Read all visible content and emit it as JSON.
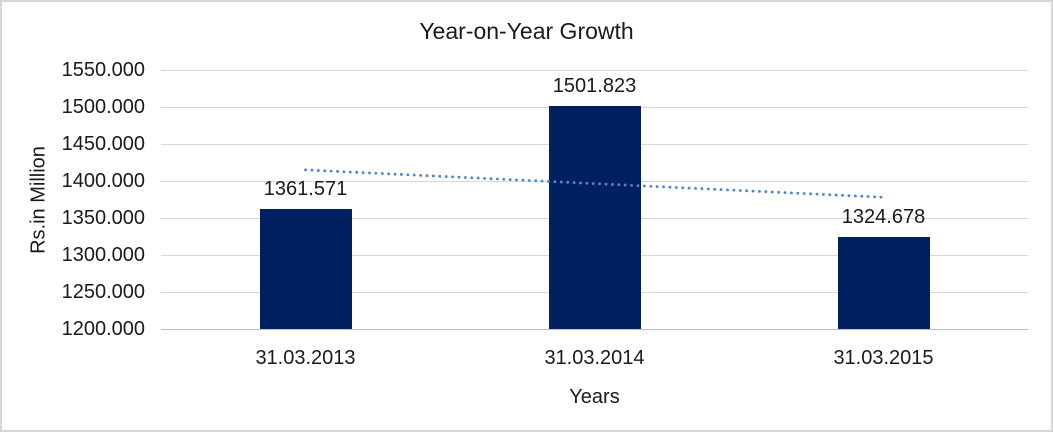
{
  "chart_data": {
    "type": "bar",
    "title": "Year-on-Year Growth",
    "xlabel": "Years",
    "ylabel": "Rs.in Million",
    "categories": [
      "31.03.2013",
      "31.03.2014",
      "31.03.2015"
    ],
    "values": [
      1361.571,
      1501.823,
      1324.678
    ],
    "data_labels": [
      "1361.571",
      "1501.823",
      "1324.678"
    ],
    "ylim": [
      1200,
      1550
    ],
    "ytick_step": 50,
    "ytick_labels": [
      "1200.000",
      "1250.000",
      "1300.000",
      "1350.000",
      "1400.000",
      "1450.000",
      "1500.000",
      "1550.000"
    ],
    "legend": "none",
    "grid": "horizontal",
    "trendline": {
      "type": "linear",
      "style": "dotted",
      "start_value": 1415,
      "end_value": 1378
    },
    "colors": {
      "bar": "#002060",
      "trendline": "#4F87C9",
      "gridline": "#D9D9D9",
      "axis_line": "#BFBFBF",
      "text": "#1A1A1A",
      "frame_border": "#D6D6D6",
      "background": "#FFFFFF"
    }
  }
}
